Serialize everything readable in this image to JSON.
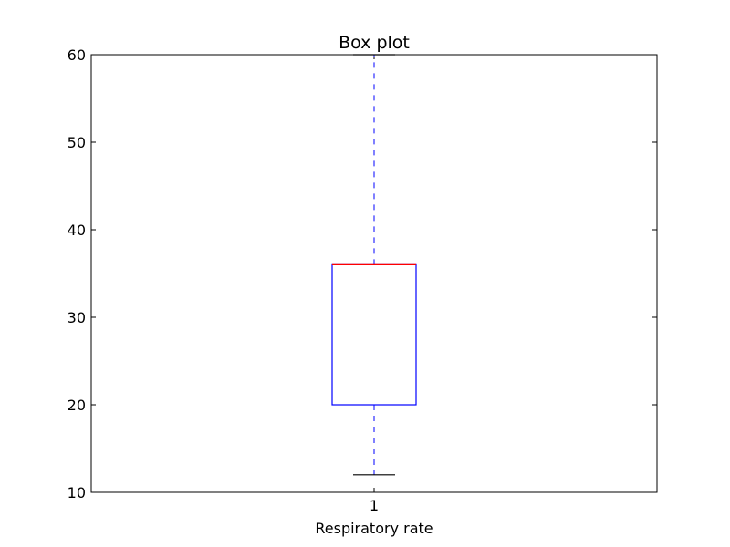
{
  "chart_data": {
    "type": "box",
    "title": "Box plot",
    "xlabel": "Respiratory rate",
    "ylabel": "",
    "categories": [
      "1"
    ],
    "ylim": [
      10,
      60
    ],
    "yticks": [
      "10",
      "20",
      "30",
      "40",
      "50",
      "60"
    ],
    "grid": false,
    "boxes": [
      {
        "category": "1",
        "whisker_low": 12,
        "q1": 20,
        "median": 36,
        "q3": 36,
        "whisker_high": 60
      }
    ],
    "colors": {
      "box": "#0000ff",
      "median": "#ff0000",
      "whisker": "#0000ff",
      "cap": "#000000",
      "axes": "#000000"
    }
  }
}
